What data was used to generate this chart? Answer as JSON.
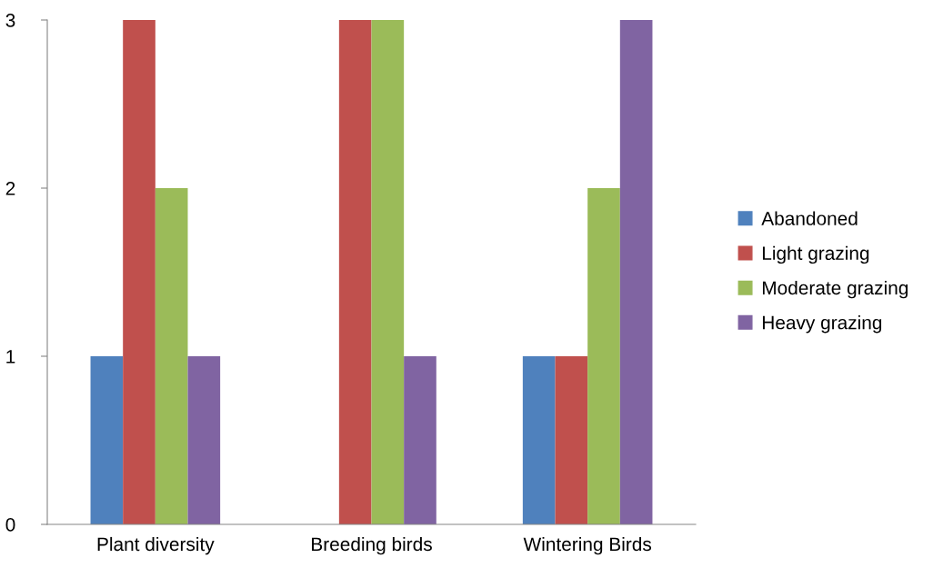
{
  "chart_data": {
    "type": "bar",
    "categories": [
      "Plant diversity",
      "Breeding birds",
      "Wintering Birds"
    ],
    "series": [
      {
        "name": "Abandoned",
        "color": "#4f81bd",
        "values": [
          1,
          0,
          1
        ]
      },
      {
        "name": "Light grazing",
        "color": "#c0504d",
        "values": [
          3,
          3,
          1
        ]
      },
      {
        "name": "Moderate grazing",
        "color": "#9bbb59",
        "values": [
          2,
          3,
          2
        ]
      },
      {
        "name": "Heavy grazing",
        "color": "#8064a2",
        "values": [
          1,
          1,
          3
        ]
      }
    ],
    "ylim": [
      0,
      3
    ],
    "yticks": [
      0,
      1,
      2,
      3
    ],
    "grid": false,
    "legend": "right"
  }
}
